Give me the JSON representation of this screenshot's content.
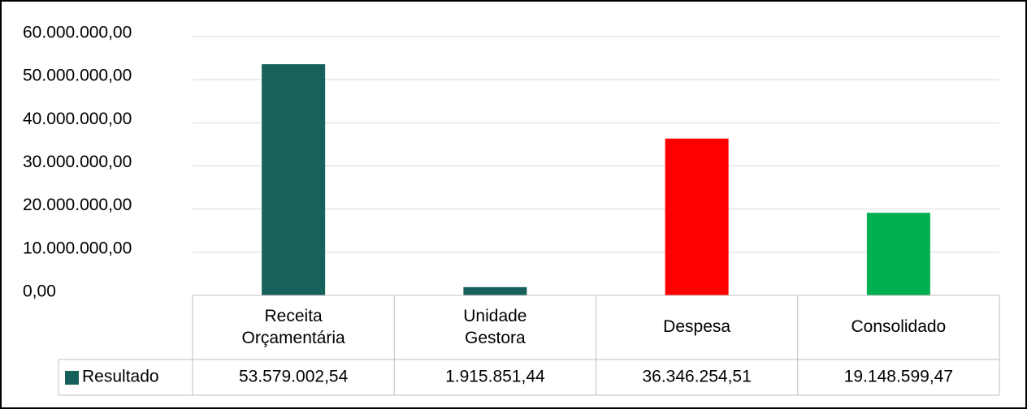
{
  "chart_data": {
    "type": "bar",
    "categories": [
      "Receita Orçamentária",
      "Unidade Gestora",
      "Despesa",
      "Consolidado"
    ],
    "series": [
      {
        "name": "Resultado",
        "color": "#17615c",
        "colors": [
          "#17615c",
          "#17615c",
          "#ff0000",
          "#00b050"
        ],
        "values": [
          53579002.54,
          1915851.44,
          36346254.51,
          19148599.47
        ],
        "value_labels": [
          "53.579.002,54",
          "1.915.851,44",
          "36.346.254,51",
          "19.148.599,47"
        ]
      }
    ],
    "ylim": [
      0,
      60000000
    ],
    "yticks": [
      {
        "value": 0,
        "label": "0,00"
      },
      {
        "value": 10000000,
        "label": "10.000.000,00"
      },
      {
        "value": 20000000,
        "label": "20.000.000,00"
      },
      {
        "value": 30000000,
        "label": "30.000.000,00"
      },
      {
        "value": 40000000,
        "label": "40.000.000,00"
      },
      {
        "value": 50000000,
        "label": "50.000.000,00"
      },
      {
        "value": 60000000,
        "label": "60.000.000,00"
      }
    ],
    "grid": true,
    "data_table": true
  }
}
